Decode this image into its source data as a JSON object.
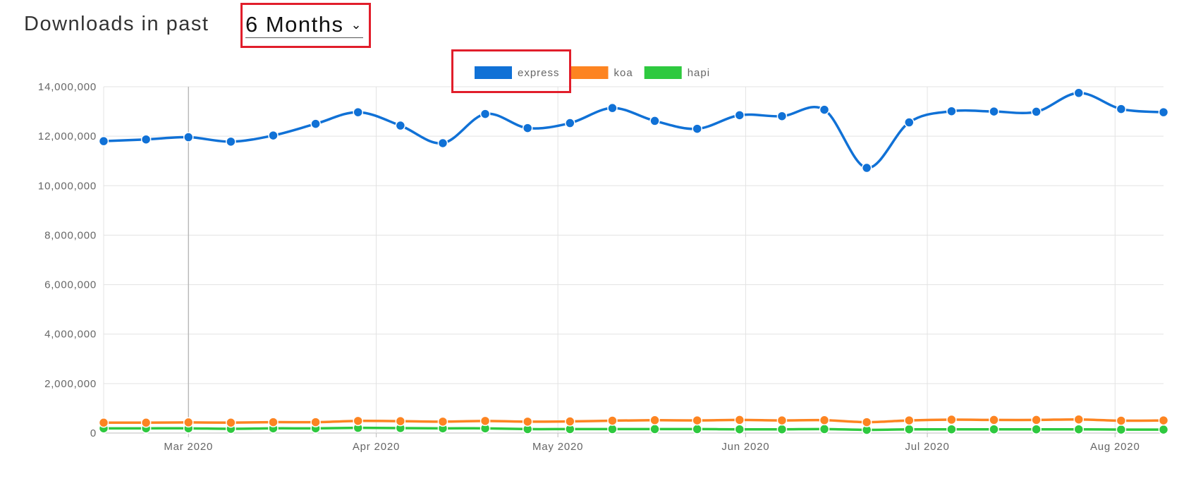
{
  "header": {
    "label": "Downloads in past",
    "period_value": "6 Months",
    "caret": "⌄"
  },
  "colors": {
    "express": "#1071d6",
    "koa": "#fd8421",
    "hapi": "#2ec93f",
    "highlight": "#e11e2b",
    "grid": "#e3e3e3"
  },
  "chart_data": {
    "type": "line",
    "ylim": [
      0,
      14000000
    ],
    "y_ticks": [
      "0",
      "2,000,000",
      "4,000,000",
      "6,000,000",
      "8,000,000",
      "10,000,000",
      "12,000,000",
      "14,000,000"
    ],
    "y_tick_values": [
      0,
      2000000,
      4000000,
      6000000,
      8000000,
      10000000,
      12000000,
      14000000
    ],
    "x": [
      "2020-02-16",
      "2020-02-23",
      "2020-03-01",
      "2020-03-08",
      "2020-03-15",
      "2020-03-22",
      "2020-03-29",
      "2020-04-05",
      "2020-04-12",
      "2020-04-19",
      "2020-04-26",
      "2020-05-03",
      "2020-05-10",
      "2020-05-17",
      "2020-05-24",
      "2020-05-31",
      "2020-06-07",
      "2020-06-14",
      "2020-06-21",
      "2020-06-28",
      "2020-07-05",
      "2020-07-12",
      "2020-07-19",
      "2020-07-26",
      "2020-08-02",
      "2020-08-09"
    ],
    "x_ticks": [
      "Mar 2020",
      "Apr 2020",
      "May 2020",
      "Jun 2020",
      "Jul 2020",
      "Aug 2020"
    ],
    "x_tick_dates": [
      "2020-03-01",
      "2020-04-01",
      "2020-05-01",
      "2020-06-01",
      "2020-07-01",
      "2020-08-01"
    ],
    "grid": true,
    "legend": "top-center",
    "series": [
      {
        "name": "express",
        "color": "#1071d6",
        "values": [
          11800000,
          11870000,
          11960000,
          11780000,
          12030000,
          12500000,
          12970000,
          12430000,
          11720000,
          12900000,
          12330000,
          12530000,
          13140000,
          12620000,
          12300000,
          12850000,
          12810000,
          13070000,
          10720000,
          12560000,
          13010000,
          13000000,
          12990000,
          13750000,
          13100000,
          12970000
        ]
      },
      {
        "name": "koa",
        "color": "#fd8421",
        "values": [
          420000,
          420000,
          430000,
          420000,
          440000,
          440000,
          490000,
          480000,
          460000,
          490000,
          460000,
          470000,
          500000,
          520000,
          510000,
          530000,
          510000,
          520000,
          440000,
          510000,
          540000,
          530000,
          530000,
          550000,
          500000,
          510000
        ]
      },
      {
        "name": "hapi",
        "color": "#2ec93f",
        "values": [
          190000,
          190000,
          190000,
          170000,
          190000,
          190000,
          210000,
          200000,
          190000,
          190000,
          160000,
          160000,
          160000,
          160000,
          160000,
          150000,
          150000,
          160000,
          130000,
          150000,
          150000,
          150000,
          150000,
          150000,
          140000,
          140000
        ]
      }
    ]
  }
}
